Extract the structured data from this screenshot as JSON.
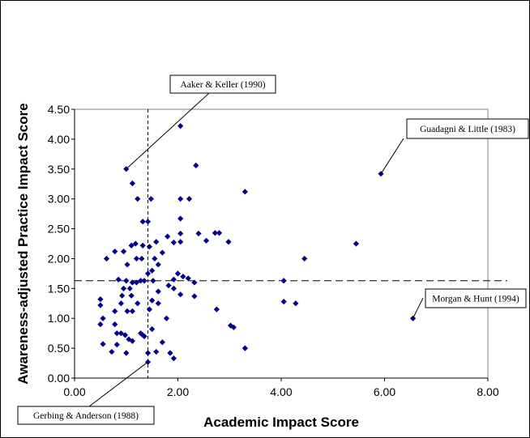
{
  "chart_data": {
    "type": "scatter",
    "xlabel": "Academic Impact Score",
    "ylabel": "Awareness-adjusted Practice Impact Score",
    "xlim": [
      0,
      8
    ],
    "ylim": [
      0,
      4.5
    ],
    "x_ticks": [
      "0.00",
      "2.00",
      "4.00",
      "6.00",
      "8.00"
    ],
    "y_ticks": [
      "0.00",
      "0.50",
      "1.00",
      "1.50",
      "2.00",
      "2.50",
      "3.00",
      "3.50",
      "4.00",
      "4.50"
    ],
    "grid": false,
    "marker_color": "#00008B",
    "reference_lines": {
      "x": 1.42,
      "y": 1.63
    },
    "annotations": [
      {
        "label": "Aaker & Keller (1990)",
        "x": 1.0,
        "y": 3.5
      },
      {
        "label": "Guadagni & Little (1983)",
        "x": 5.93,
        "y": 3.42
      },
      {
        "label": "Morgan & Hunt (1994)",
        "x": 6.55,
        "y": 1.0
      },
      {
        "label": "Gerbing & Anderson (1988)",
        "x": 1.42,
        "y": 0.27
      }
    ],
    "points": [
      [
        1.0,
        3.5
      ],
      [
        1.12,
        3.26
      ],
      [
        1.22,
        3.0
      ],
      [
        1.48,
        3.0
      ],
      [
        2.05,
        4.22
      ],
      [
        2.35,
        3.56
      ],
      [
        2.05,
        3.0
      ],
      [
        2.22,
        3.0
      ],
      [
        3.3,
        3.12
      ],
      [
        5.93,
        3.42
      ],
      [
        1.32,
        2.62
      ],
      [
        1.42,
        2.62
      ],
      [
        2.05,
        2.67
      ],
      [
        2.05,
        2.42
      ],
      [
        2.4,
        2.42
      ],
      [
        2.72,
        2.43
      ],
      [
        2.8,
        2.43
      ],
      [
        1.8,
        2.37
      ],
      [
        1.58,
        2.28
      ],
      [
        1.92,
        2.27
      ],
      [
        2.05,
        2.28
      ],
      [
        2.55,
        2.3
      ],
      [
        2.98,
        2.28
      ],
      [
        0.62,
        2.0
      ],
      [
        0.78,
        2.12
      ],
      [
        0.95,
        2.12
      ],
      [
        1.02,
        1.9
      ],
      [
        1.1,
        2.22
      ],
      [
        1.18,
        2.25
      ],
      [
        1.3,
        2.0
      ],
      [
        1.32,
        2.22
      ],
      [
        1.45,
        2.2
      ],
      [
        1.55,
        2.0
      ],
      [
        1.62,
        1.9
      ],
      [
        1.7,
        2.1
      ],
      [
        1.2,
        2.0
      ],
      [
        1.5,
        1.8
      ],
      [
        1.92,
        1.65
      ],
      [
        2.0,
        1.75
      ],
      [
        2.1,
        1.7
      ],
      [
        2.2,
        1.67
      ],
      [
        2.32,
        1.6
      ],
      [
        4.45,
        2.0
      ],
      [
        5.45,
        2.25
      ],
      [
        0.85,
        1.65
      ],
      [
        0.95,
        1.5
      ],
      [
        1.0,
        1.63
      ],
      [
        1.07,
        1.5
      ],
      [
        1.12,
        1.6
      ],
      [
        1.2,
        1.6
      ],
      [
        1.28,
        1.63
      ],
      [
        1.35,
        1.63
      ],
      [
        1.42,
        1.75
      ],
      [
        1.52,
        1.63
      ],
      [
        1.82,
        1.55
      ],
      [
        1.92,
        1.5
      ],
      [
        1.62,
        1.45
      ],
      [
        2.05,
        1.4
      ],
      [
        2.32,
        1.37
      ],
      [
        4.05,
        1.63
      ],
      [
        0.92,
        1.38
      ],
      [
        1.1,
        1.38
      ],
      [
        0.5,
        1.32
      ],
      [
        0.5,
        1.22
      ],
      [
        0.9,
        1.25
      ],
      [
        1.02,
        1.12
      ],
      [
        1.12,
        1.12
      ],
      [
        1.22,
        1.25
      ],
      [
        1.45,
        1.15
      ],
      [
        1.5,
        1.3
      ],
      [
        1.62,
        1.25
      ],
      [
        0.78,
        1.12
      ],
      [
        0.5,
        0.9
      ],
      [
        0.55,
        1.0
      ],
      [
        0.78,
        0.9
      ],
      [
        0.82,
        0.75
      ],
      [
        0.9,
        0.75
      ],
      [
        0.98,
        0.72
      ],
      [
        1.05,
        0.65
      ],
      [
        1.12,
        0.62
      ],
      [
        1.28,
        0.75
      ],
      [
        1.35,
        0.7
      ],
      [
        1.5,
        0.82
      ],
      [
        1.7,
        0.6
      ],
      [
        1.78,
        1.0
      ],
      [
        2.75,
        1.15
      ],
      [
        3.02,
        0.88
      ],
      [
        3.08,
        0.85
      ],
      [
        4.05,
        1.28
      ],
      [
        4.28,
        1.25
      ],
      [
        6.55,
        1.0
      ],
      [
        0.55,
        0.57
      ],
      [
        0.72,
        0.44
      ],
      [
        0.82,
        0.56
      ],
      [
        1.0,
        0.42
      ],
      [
        1.42,
        0.42
      ],
      [
        1.58,
        0.44
      ],
      [
        1.85,
        0.42
      ],
      [
        1.92,
        0.33
      ],
      [
        1.42,
        0.27
      ],
      [
        3.3,
        0.5
      ],
      [
        1.32,
        0.72
      ]
    ]
  }
}
